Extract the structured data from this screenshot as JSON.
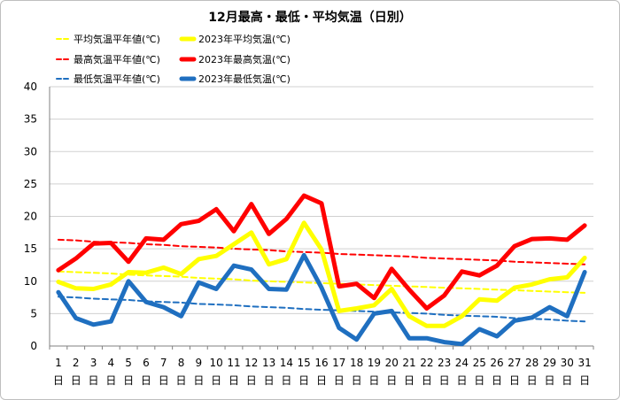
{
  "chart_data": {
    "type": "line",
    "title": "12月最高・最低・平均気温（日別）",
    "xlabel": "",
    "ylabel": "",
    "ylim": [
      0,
      40
    ],
    "y_ticks": [
      0,
      5,
      10,
      15,
      20,
      25,
      30,
      35,
      40
    ],
    "grid": true,
    "legend_position": "top-left",
    "x_categories": [
      "1日",
      "2日",
      "3日",
      "4日",
      "5日",
      "6日",
      "7日",
      "8日",
      "9日",
      "10日",
      "11日",
      "12日",
      "13日",
      "14日",
      "15日",
      "16日",
      "17日",
      "18日",
      "19日",
      "20日",
      "21日",
      "22日",
      "23日",
      "24日",
      "25日",
      "26日",
      "27日",
      "28日",
      "29日",
      "30日",
      "31日"
    ],
    "x_tick_numbers": [
      "1",
      "2",
      "3",
      "4",
      "5",
      "6",
      "7",
      "8",
      "9",
      "10",
      "11",
      "12",
      "13",
      "14",
      "15",
      "16",
      "17",
      "18",
      "19",
      "20",
      "21",
      "22",
      "23",
      "24",
      "25",
      "26",
      "27",
      "28",
      "29",
      "30",
      "31"
    ],
    "x_tick_suffix": "日",
    "series": [
      {
        "name": "平均気温平年値(℃)",
        "color": "#ffff00",
        "style": "dashed",
        "values": [
          11.5,
          11.4,
          11.3,
          11.2,
          11.0,
          10.9,
          10.8,
          10.7,
          10.5,
          10.4,
          10.3,
          10.1,
          10.0,
          9.9,
          9.8,
          9.7,
          9.6,
          9.5,
          9.4,
          9.3,
          9.2,
          9.1,
          9.0,
          8.9,
          8.8,
          8.7,
          8.6,
          8.5,
          8.4,
          8.3,
          8.2
        ]
      },
      {
        "name": "2023年平均気温(℃)",
        "color": "#ffff00",
        "style": "solid",
        "values": [
          9.9,
          8.9,
          8.8,
          9.5,
          11.4,
          11.3,
          12.1,
          11.1,
          13.4,
          13.9,
          15.7,
          17.5,
          12.6,
          13.4,
          19.0,
          14.9,
          5.4,
          5.8,
          6.3,
          8.8,
          4.6,
          3.1,
          3.1,
          4.6,
          7.2,
          7.0,
          9.0,
          9.5,
          10.3,
          10.6,
          13.6
        ]
      },
      {
        "name": "最高気温平年値(℃)",
        "color": "#ff0000",
        "style": "dashed",
        "values": [
          16.4,
          16.3,
          16.1,
          16.0,
          15.9,
          15.7,
          15.6,
          15.4,
          15.3,
          15.2,
          15.0,
          14.9,
          14.8,
          14.6,
          14.5,
          14.4,
          14.2,
          14.1,
          14.0,
          13.9,
          13.8,
          13.6,
          13.5,
          13.4,
          13.3,
          13.2,
          13.0,
          12.9,
          12.8,
          12.7,
          12.6
        ]
      },
      {
        "name": "2023年最高気温(℃)",
        "color": "#ff0000",
        "style": "solid",
        "values": [
          11.7,
          13.5,
          15.8,
          15.9,
          13.0,
          16.6,
          16.4,
          18.8,
          19.3,
          21.1,
          17.7,
          21.9,
          17.3,
          19.6,
          23.2,
          22.0,
          9.2,
          9.6,
          7.4,
          11.9,
          8.7,
          5.8,
          7.8,
          11.5,
          10.9,
          12.4,
          15.4,
          16.5,
          16.6,
          16.4,
          18.6
        ]
      },
      {
        "name": "最低気温平年値(℃)",
        "color": "#1f6fc0",
        "style": "dashed",
        "values": [
          7.6,
          7.5,
          7.3,
          7.2,
          7.1,
          6.9,
          6.8,
          6.7,
          6.5,
          6.4,
          6.3,
          6.1,
          6.0,
          5.9,
          5.7,
          5.6,
          5.5,
          5.4,
          5.3,
          5.2,
          5.1,
          5.0,
          4.8,
          4.7,
          4.6,
          4.5,
          4.3,
          4.2,
          4.1,
          3.9,
          3.8
        ]
      },
      {
        "name": "2023年最低気温(℃)",
        "color": "#1f6fc0",
        "style": "solid",
        "values": [
          8.3,
          4.3,
          3.3,
          3.8,
          10.0,
          6.8,
          6.0,
          4.6,
          9.8,
          8.8,
          12.4,
          11.8,
          8.8,
          8.7,
          14.0,
          9.0,
          2.8,
          1.0,
          5.0,
          5.4,
          1.2,
          1.2,
          0.6,
          0.3,
          2.6,
          1.5,
          3.9,
          4.4,
          6.0,
          4.6,
          11.4
        ]
      }
    ]
  }
}
